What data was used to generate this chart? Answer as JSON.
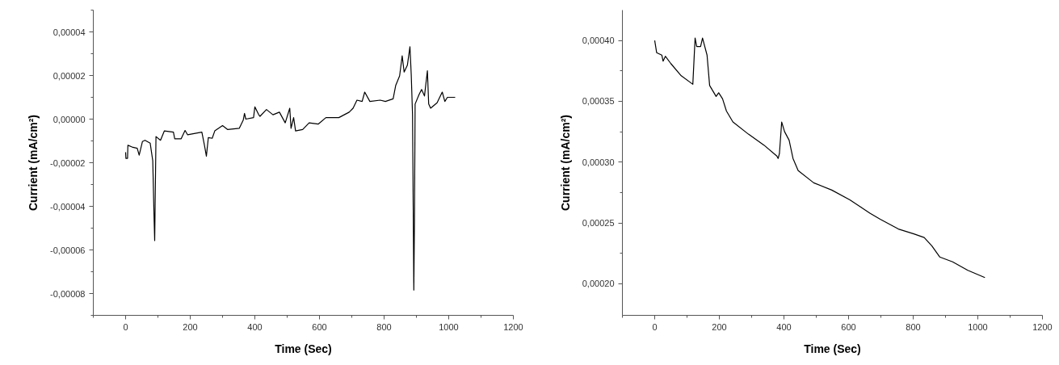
{
  "chart_data": [
    {
      "type": "line",
      "xlabel": "Time (Sec)",
      "ylabel": "Currient (mA/cm²)",
      "xlim": [
        -100,
        1200
      ],
      "ylim": [
        -9e-05,
        5e-05
      ],
      "xticks": [
        {
          "value": -100,
          "label": null
        },
        {
          "value": 0,
          "label": "0"
        },
        {
          "value": 100,
          "label": null
        },
        {
          "value": 200,
          "label": "200"
        },
        {
          "value": 300,
          "label": null
        },
        {
          "value": 400,
          "label": "400"
        },
        {
          "value": 500,
          "label": null
        },
        {
          "value": 600,
          "label": "600"
        },
        {
          "value": 700,
          "label": null
        },
        {
          "value": 800,
          "label": "800"
        },
        {
          "value": 900,
          "label": null
        },
        {
          "value": 1000,
          "label": "1000"
        },
        {
          "value": 1100,
          "label": null
        },
        {
          "value": 1200,
          "label": "1200"
        }
      ],
      "yticks": [
        {
          "value": -9e-05,
          "label": null
        },
        {
          "value": -8e-05,
          "label": "-0,00008"
        },
        {
          "value": -7e-05,
          "label": null
        },
        {
          "value": -6e-05,
          "label": "-0,00006"
        },
        {
          "value": -5e-05,
          "label": null
        },
        {
          "value": -4e-05,
          "label": "-0,00004"
        },
        {
          "value": -3e-05,
          "label": null
        },
        {
          "value": -2e-05,
          "label": "-0,00002"
        },
        {
          "value": -1e-05,
          "label": null
        },
        {
          "value": 0,
          "label": "0,00000"
        },
        {
          "value": 1e-05,
          "label": null
        },
        {
          "value": 2e-05,
          "label": "0,00002"
        },
        {
          "value": 3e-05,
          "label": null
        },
        {
          "value": 4e-05,
          "label": "0,00004"
        },
        {
          "value": 5e-05,
          "label": null
        }
      ],
      "grid": false,
      "series": [
        {
          "color": "#000000",
          "x": [
            0,
            1,
            6,
            7,
            20,
            36,
            42,
            52,
            60,
            76,
            84,
            88,
            90,
            94,
            108,
            120,
            148,
            152,
            172,
            184,
            192,
            236,
            244,
            250,
            256,
            268,
            276,
            300,
            316,
            352,
            364,
            368,
            372,
            396,
            400,
            412,
            416,
            436,
            456,
            476,
            494,
            508,
            512,
            520,
            526,
            548,
            568,
            596,
            620,
            660,
            692,
            704,
            716,
            732,
            740,
            756,
            788,
            804,
            828,
            836,
            848,
            856,
            862,
            872,
            880,
            884,
            888,
            892,
            894,
            896,
            908,
            916,
            925,
            934,
            938,
            944,
            964,
            980,
            988,
            996,
            1020
          ],
          "values": [
            -1.52e-05,
            -1.8e-05,
            -1.8e-05,
            -1.2e-05,
            -1.28e-05,
            -1.34e-05,
            -1.65e-05,
            -1.03e-05,
            -9.7e-06,
            -1.1e-05,
            -1.9e-05,
            -4.47e-05,
            -5.57e-05,
            -8e-06,
            -9.7e-06,
            -5.4e-06,
            -6e-06,
            -9e-06,
            -9e-06,
            -5.2e-06,
            -7.2e-06,
            -6e-06,
            -1.2e-05,
            -1.7e-05,
            -8.5e-06,
            -8.8e-06,
            -5.4e-06,
            -3e-06,
            -4.8e-06,
            -4.2e-06,
            -5e-07,
            2.6e-06,
            0,
            7e-07,
            5.6e-06,
            2e-06,
            1.3e-06,
            4.4e-06,
            2e-06,
            3.2e-06,
            -1.7e-06,
            5e-06,
            -4.2e-06,
            7e-07,
            -5.4e-06,
            -4.8e-06,
            -1.7e-06,
            -2.3e-06,
            7e-07,
            7e-07,
            3.2e-06,
            5e-06,
            8.7e-06,
            8.1e-06,
            1.24e-05,
            8.1e-06,
            8.7e-06,
            8.1e-06,
            9.3e-06,
            1.55e-05,
            1.98e-05,
            2.9e-05,
            2.16e-05,
            2.47e-05,
            3.32e-05,
            2.04e-05,
            2e-06,
            -7.84e-05,
            -4.6e-05,
            6.9e-06,
            1.12e-05,
            1.36e-05,
            1.06e-05,
            2.22e-05,
            6.9e-06,
            5e-06,
            7.5e-06,
            1.24e-05,
            8.1e-06,
            1e-05,
            1e-05
          ]
        }
      ]
    },
    {
      "type": "line",
      "xlabel": "Time (Sec)",
      "ylabel": "Currient (mA/cm²)",
      "xlim": [
        -100,
        1200
      ],
      "ylim": [
        0.000174,
        0.000425
      ],
      "xticks": [
        {
          "value": -100,
          "label": null
        },
        {
          "value": 0,
          "label": "0"
        },
        {
          "value": 100,
          "label": null
        },
        {
          "value": 200,
          "label": "200"
        },
        {
          "value": 300,
          "label": null
        },
        {
          "value": 400,
          "label": "400"
        },
        {
          "value": 500,
          "label": null
        },
        {
          "value": 600,
          "label": "600"
        },
        {
          "value": 700,
          "label": null
        },
        {
          "value": 800,
          "label": "800"
        },
        {
          "value": 900,
          "label": null
        },
        {
          "value": 1000,
          "label": "1000"
        },
        {
          "value": 1100,
          "label": null
        },
        {
          "value": 1200,
          "label": "1200"
        }
      ],
      "yticks": [
        {
          "value": 0.0002,
          "label": "0,00020"
        },
        {
          "value": 0.000225,
          "label": null
        },
        {
          "value": 0.00025,
          "label": "0,00025"
        },
        {
          "value": 0.000275,
          "label": null
        },
        {
          "value": 0.0003,
          "label": "0,00030"
        },
        {
          "value": 0.000325,
          "label": null
        },
        {
          "value": 0.00035,
          "label": "0,00035"
        },
        {
          "value": 0.000375,
          "label": null
        },
        {
          "value": 0.0004,
          "label": "0,00040"
        }
      ],
      "grid": false,
      "series": [
        {
          "color": "#000000",
          "x": [
            0,
            6,
            22,
            26,
            33,
            50,
            82,
            118,
            125,
            130,
            142,
            148,
            162,
            170,
            190,
            198,
            210,
            222,
            242,
            290,
            338,
            378,
            382,
            386,
            393,
            402,
            416,
            428,
            444,
            492,
            548,
            604,
            666,
            698,
            754,
            802,
            834,
            858,
            882,
            922,
            969,
            1022
          ],
          "values": [
            0.0004,
            0.00039,
            0.000388,
            0.000383,
            0.000387,
            0.000381,
            0.000371,
            0.000364,
            0.000402,
            0.000395,
            0.000395,
            0.000402,
            0.000388,
            0.000363,
            0.000354,
            0.000357,
            0.000352,
            0.000342,
            0.000333,
            0.000323,
            0.000314,
            0.000305,
            0.000303,
            0.000307,
            0.000333,
            0.000325,
            0.000318,
            0.000303,
            0.000293,
            0.000283,
            0.000277,
            0.000269,
            0.000258,
            0.000253,
            0.000245,
            0.000241,
            0.000238,
            0.000231,
            0.000222,
            0.000218,
            0.000211,
            0.000205
          ]
        }
      ]
    }
  ]
}
